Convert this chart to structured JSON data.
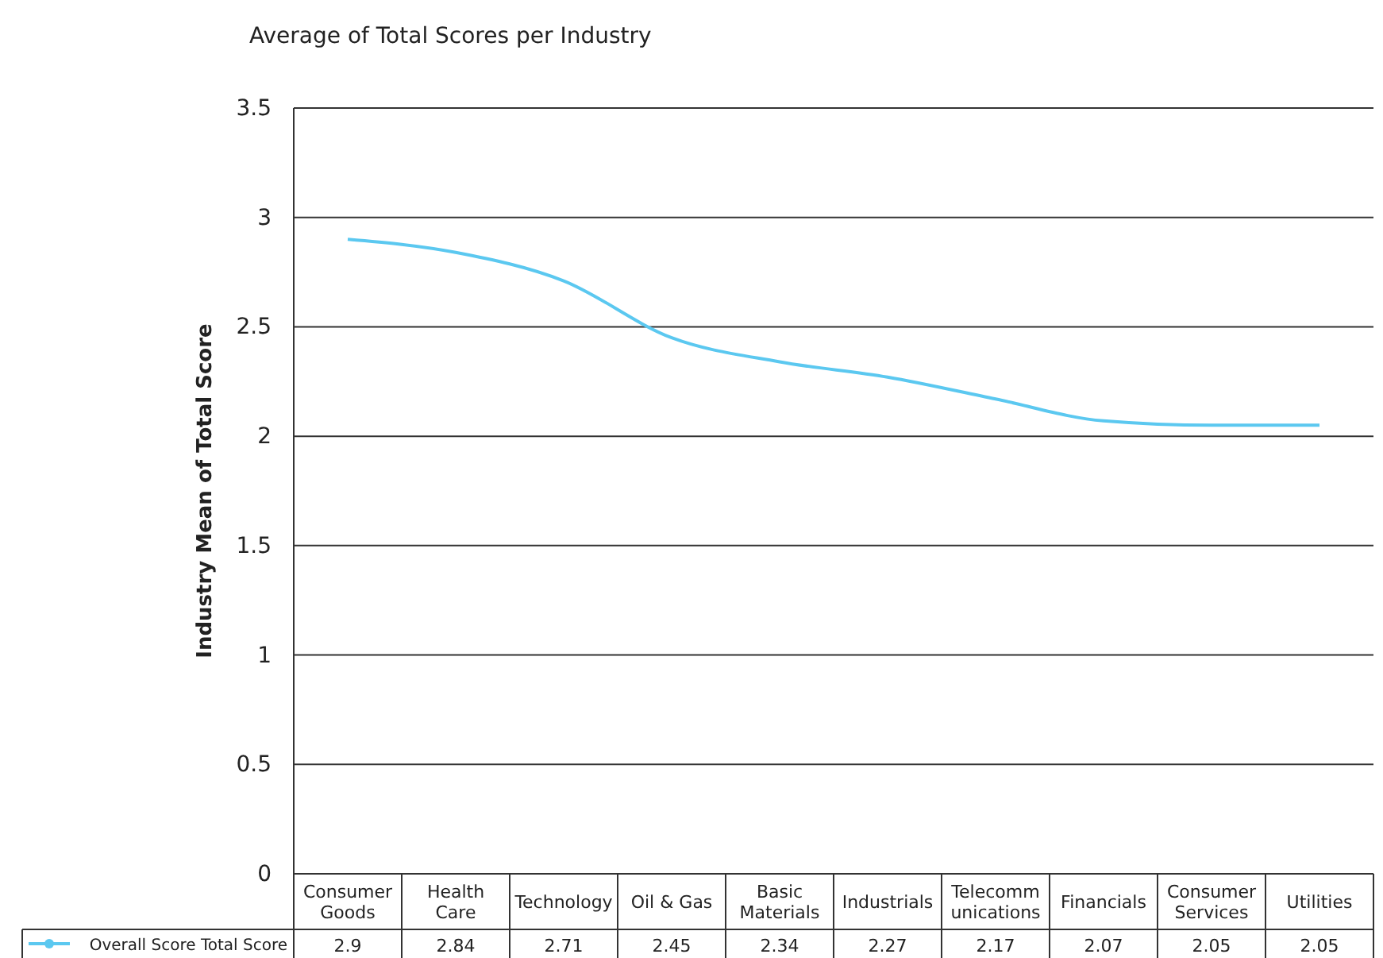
{
  "chart_data": {
    "type": "line",
    "title": "Average of Total Scores per Industry",
    "ylabel": "Industry Mean of Total Score",
    "categories": [
      "Consumer Goods",
      "Health Care",
      "Technology",
      "Oil & Gas",
      "Basic Materials",
      "Industrials",
      "Telecommunications",
      "Financials",
      "Consumer Services",
      "Utilities"
    ],
    "series": [
      {
        "name": "Overall Score Total Score",
        "color": "#5bc8f0",
        "values": [
          2.9,
          2.84,
          2.71,
          2.45,
          2.34,
          2.27,
          2.17,
          2.07,
          2.05,
          2.05
        ]
      }
    ],
    "ylim": [
      0,
      3.5
    ],
    "yticks": [
      0,
      0.5,
      1,
      1.5,
      2,
      2.5,
      3,
      3.5
    ],
    "grid": "y",
    "data_labels": true,
    "legend": "bottom"
  }
}
